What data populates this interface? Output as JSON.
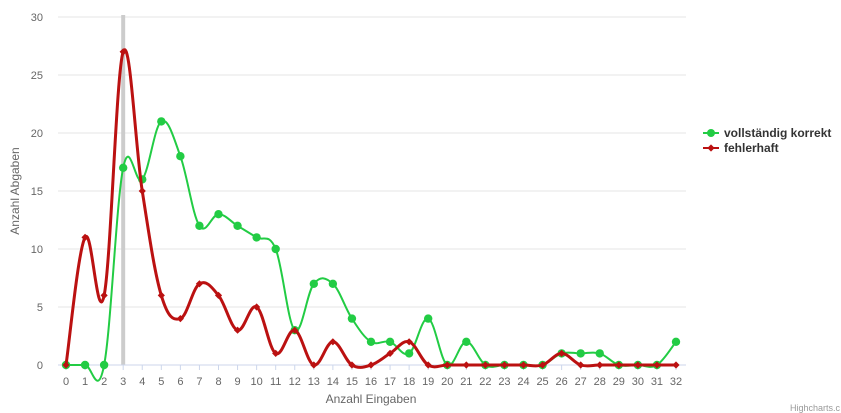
{
  "colors": {
    "series_correct": "#22cc44",
    "series_faulty": "#bb1111",
    "crosshair": "#cccccc"
  },
  "credits": "Highcharts.c",
  "chart_data": {
    "type": "line",
    "xlabel": "Anzahl Eingaben",
    "ylabel": "Anzahl Abgaben",
    "x": [
      0,
      1,
      2,
      3,
      4,
      5,
      6,
      7,
      8,
      9,
      10,
      11,
      12,
      13,
      14,
      15,
      16,
      17,
      18,
      19,
      20,
      21,
      22,
      23,
      24,
      25,
      26,
      27,
      28,
      29,
      30,
      31,
      32
    ],
    "xlim": [
      0,
      32
    ],
    "ylim": [
      0,
      30
    ],
    "yticks": [
      0,
      5,
      10,
      15,
      20,
      25,
      30
    ],
    "grid": true,
    "legend_position": "right",
    "highlight_x": 3,
    "series": [
      {
        "name": "vollständig korrekt",
        "marker": "circle",
        "values": [
          0,
          0,
          0,
          17,
          16,
          21,
          18,
          12,
          13,
          12,
          11,
          10,
          3,
          7,
          7,
          4,
          2,
          2,
          1,
          4,
          0,
          2,
          0,
          0,
          0,
          0,
          1,
          1,
          1,
          0,
          0,
          0,
          2
        ]
      },
      {
        "name": "fehlerhaft",
        "marker": "diamond",
        "values": [
          0,
          11,
          6,
          27,
          15,
          6,
          4,
          7,
          6,
          3,
          5,
          1,
          3,
          0,
          2,
          0,
          0,
          1,
          2,
          0,
          0,
          0,
          0,
          0,
          0,
          0,
          1,
          0,
          0,
          0,
          0,
          0,
          0
        ]
      }
    ]
  }
}
